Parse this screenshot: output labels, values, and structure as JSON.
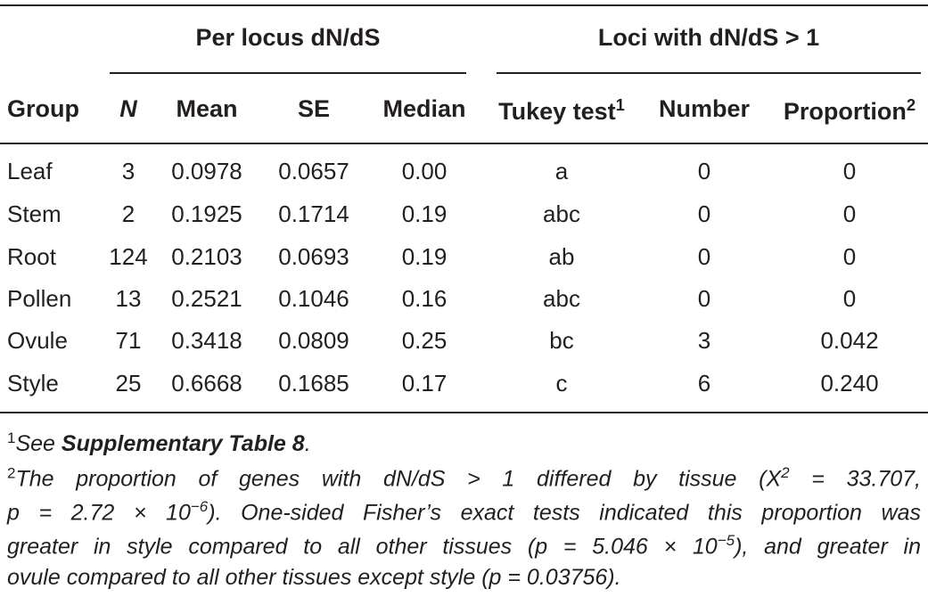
{
  "table": {
    "groups": [
      "Per locus dN/dS",
      "Loci with dN/dS > 1"
    ],
    "columns": [
      {
        "label": "Group"
      },
      {
        "label": "N"
      },
      {
        "label": "Mean"
      },
      {
        "label": "SE"
      },
      {
        "label": "Median"
      },
      {
        "label": "Tukey test",
        "note": "1"
      },
      {
        "label": "Number"
      },
      {
        "label": "Proportion",
        "note": "2"
      }
    ],
    "rows": [
      [
        "Leaf",
        "3",
        "0.0978",
        "0.0657",
        "0.00",
        "a",
        "0",
        "0"
      ],
      [
        "Stem",
        "2",
        "0.1925",
        "0.1714",
        "0.19",
        "abc",
        "0",
        "0"
      ],
      [
        "Root",
        "124",
        "0.2103",
        "0.0693",
        "0.19",
        "ab",
        "0",
        "0"
      ],
      [
        "Pollen",
        "13",
        "0.2521",
        "0.1046",
        "0.16",
        "abc",
        "0",
        "0"
      ],
      [
        "Ovule",
        "71",
        "0.3418",
        "0.0809",
        "0.25",
        "bc",
        "3",
        "0.042"
      ],
      [
        "Style",
        "25",
        "0.6668",
        "0.1685",
        "0.17",
        "c",
        "6",
        "0.240"
      ]
    ]
  },
  "footnotes": [
    {
      "mark": "1",
      "text": "See ",
      "emphasis": "Supplementary Table 8",
      "after": "."
    },
    {
      "mark": "2",
      "lines": [
        {
          "text": "The proportion of genes with dN/dS > 1 differed by tissue (X",
          "sup": "2",
          "after": " = 33.707,"
        },
        {
          "text": "p = 2.72 × 10",
          "sup": "−6",
          "after": "). One-sided Fisher’s exact tests indicated this proportion was"
        },
        {
          "text": "greater in style compared to all other tissues (p = 5.046 × 10",
          "sup": "−5",
          "after": "), and greater in"
        },
        {
          "text": "ovule compared to all other tissues except style (p = 0.03756)."
        }
      ]
    }
  ]
}
